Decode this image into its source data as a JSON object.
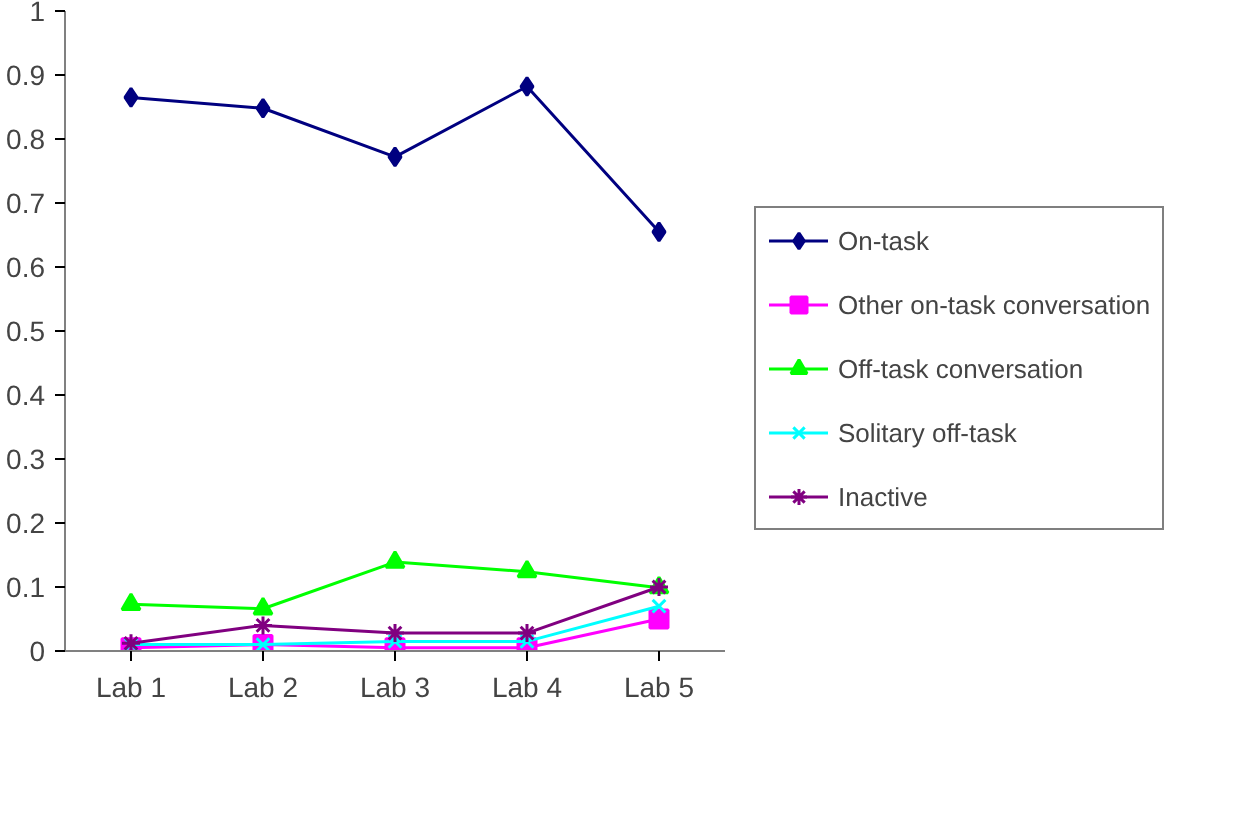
{
  "chart_data": {
    "type": "line",
    "categories": [
      "Lab 1",
      "Lab 2",
      "Lab 3",
      "Lab 4",
      "Lab 5"
    ],
    "ylim": [
      0,
      1
    ],
    "yticks": [
      0,
      0.1,
      0.2,
      0.3,
      0.4,
      0.5,
      0.6,
      0.7,
      0.8,
      0.9,
      1
    ],
    "grid": false,
    "legend": "right",
    "series": [
      {
        "name": "On-task",
        "color": "#000080",
        "marker": "diamond",
        "values": [
          0.865,
          0.848,
          0.772,
          0.882,
          0.655
        ]
      },
      {
        "name": "Other on-task conversation",
        "color": "#ff00ff",
        "marker": "square",
        "values": [
          0.005,
          0.01,
          0.005,
          0.005,
          0.05
        ]
      },
      {
        "name": "Off-task conversation",
        "color": "#00ff00",
        "marker": "triangle",
        "values": [
          0.073,
          0.066,
          0.139,
          0.124,
          0.099
        ]
      },
      {
        "name": "Solitary off-task",
        "color": "#00ffff",
        "marker": "x",
        "values": [
          0.01,
          0.01,
          0.015,
          0.015,
          0.07
        ]
      },
      {
        "name": "Inactive",
        "color": "#800080",
        "marker": "cross",
        "values": [
          0.012,
          0.04,
          0.028,
          0.028,
          0.1
        ]
      }
    ]
  }
}
